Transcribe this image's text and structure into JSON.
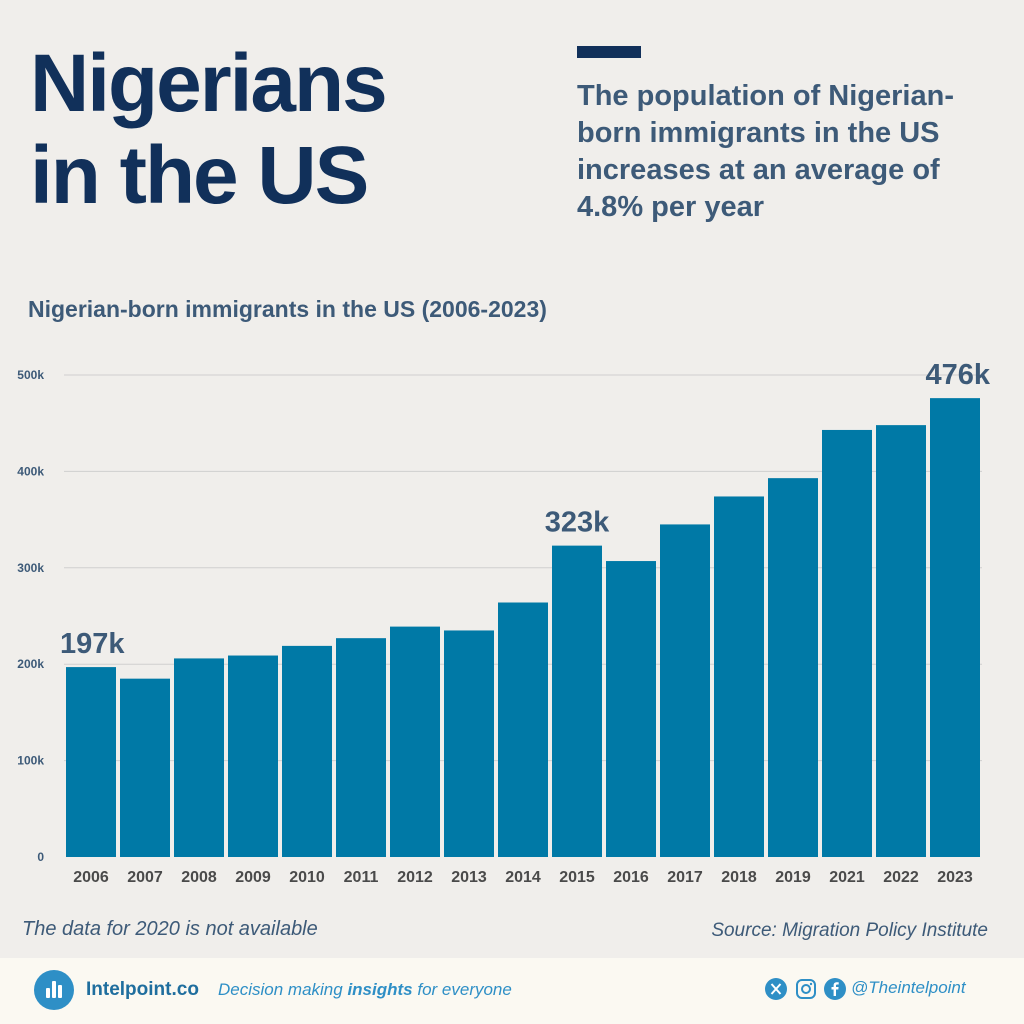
{
  "header": {
    "title_line1": "Nigerians",
    "title_line2": "in the US",
    "subtitle": "The population of Nigerian-born immigrants in the US increases at an average of 4.8% per year"
  },
  "chart_data": {
    "type": "bar",
    "title": "Nigerian-born immigrants in the US (2006-2023)",
    "xlabel": "",
    "ylabel": "",
    "categories": [
      "2006",
      "2007",
      "2008",
      "2009",
      "2010",
      "2011",
      "2012",
      "2013",
      "2014",
      "2015",
      "2016",
      "2017",
      "2018",
      "2019",
      "2021",
      "2022",
      "2023"
    ],
    "values": [
      197,
      185,
      206,
      209,
      219,
      227,
      239,
      235,
      264,
      323,
      307,
      345,
      374,
      393,
      443,
      448,
      476
    ],
    "unit_suffix": "k",
    "ylim": [
      0,
      500
    ],
    "yticks": [
      "0",
      "100k",
      "200k",
      "300k",
      "400k",
      "500k"
    ],
    "grid": true,
    "highlighted_labels": [
      {
        "category": "2006",
        "label": "197k"
      },
      {
        "category": "2015",
        "label": "323k"
      },
      {
        "category": "2023",
        "label": "476k"
      }
    ],
    "colors": {
      "bar": "#0079a6",
      "label": "#3d5a78",
      "tick": "#3d5a78",
      "grid": "#cfcfcf"
    }
  },
  "notes": {
    "missing_data": "The data for 2020 is not available",
    "source": "Source: Migration Policy Institute"
  },
  "footer": {
    "brand": "Intelpoint.co",
    "tagline_pre": "Decision making ",
    "tagline_bold": "insights",
    "tagline_post": " for everyone",
    "handle": "@Theintelpoint",
    "icons": [
      "x-icon",
      "instagram-icon",
      "facebook-icon"
    ],
    "accent": "#2e8fc6"
  }
}
